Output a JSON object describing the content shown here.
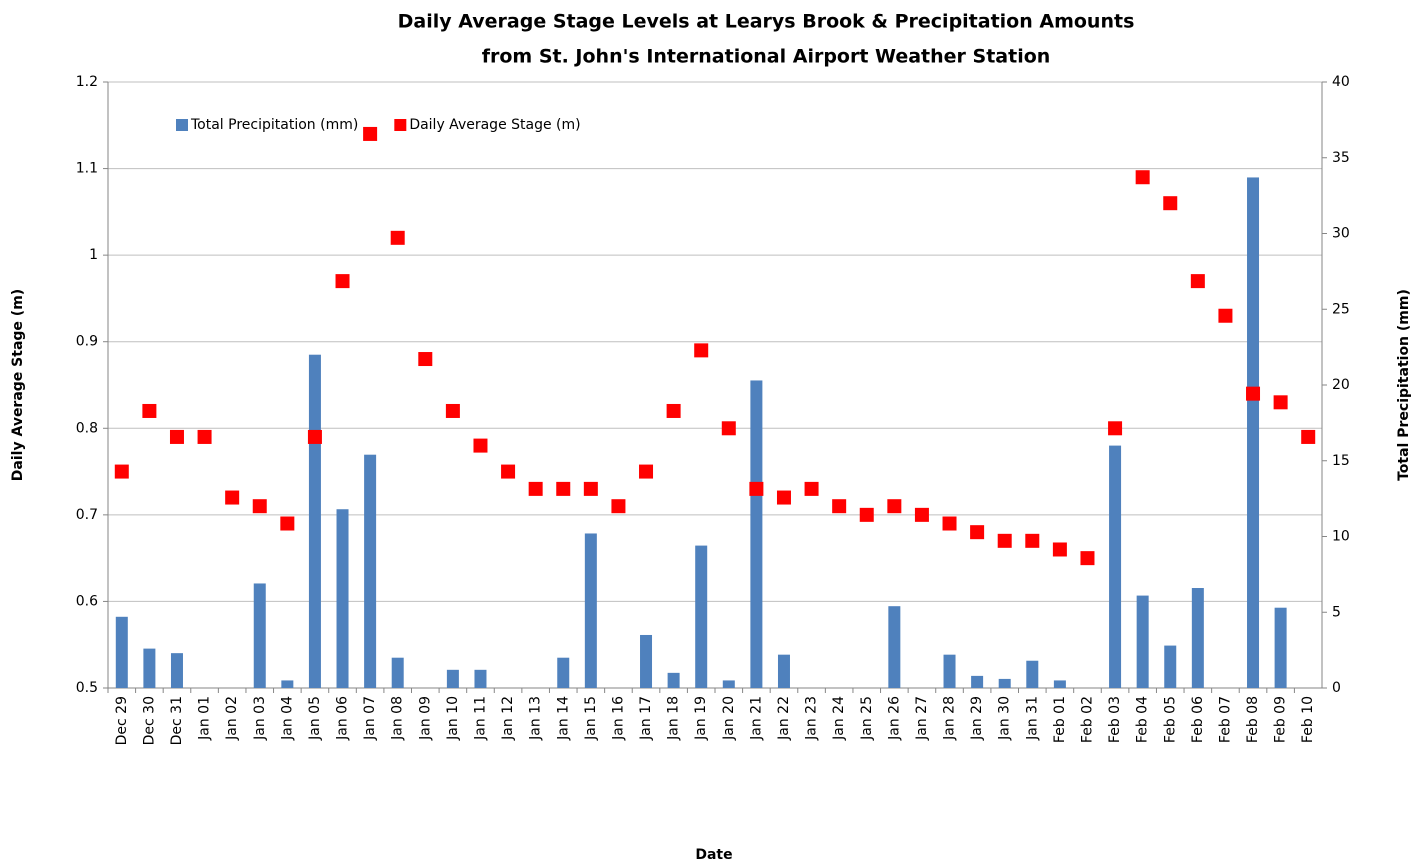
{
  "chart_data": {
    "type": "bar",
    "title": [
      "Daily Average Stage Levels at Learys Brook & Precipitation Amounts",
      "from St. John's International Airport Weather Station"
    ],
    "xlabel": "Date",
    "ylabel": "Daily Average Stage (m)",
    "y2label": "Total Precipitation (mm)",
    "categories": [
      "Dec 29",
      "Dec 30",
      "Dec 31",
      "Jan 01",
      "Jan 02",
      "Jan 03",
      "Jan 04",
      "Jan 05",
      "Jan 06",
      "Jan 07",
      "Jan 08",
      "Jan 09",
      "Jan 10",
      "Jan 11",
      "Jan 12",
      "Jan 13",
      "Jan 14",
      "Jan 15",
      "Jan 16",
      "Jan 17",
      "Jan 18",
      "Jan 19",
      "Jan 20",
      "Jan 21",
      "Jan 22",
      "Jan 23",
      "Jan 24",
      "Jan 25",
      "Jan 26",
      "Jan 27",
      "Jan 28",
      "Jan 29",
      "Jan 30",
      "Jan 31",
      "Feb 01",
      "Feb 02",
      "Feb 03",
      "Feb 04",
      "Feb 05",
      "Feb 06",
      "Feb 07",
      "Feb 08",
      "Feb 09",
      "Feb 10"
    ],
    "series": [
      {
        "name": "Total Precipitation (mm)",
        "type": "bar",
        "axis": "y2",
        "color": "#4f81bd",
        "values": [
          4.7,
          2.6,
          2.3,
          0,
          0,
          6.9,
          0.5,
          22.0,
          11.8,
          15.4,
          2.0,
          0,
          1.2,
          1.2,
          0,
          0,
          2.0,
          10.2,
          0,
          3.5,
          1.0,
          9.4,
          0.5,
          20.3,
          2.2,
          0,
          0,
          0,
          5.4,
          0,
          2.2,
          0.8,
          0.6,
          1.8,
          0.5,
          0,
          16.0,
          6.1,
          2.8,
          6.6,
          0,
          33.7,
          5.3,
          0
        ]
      },
      {
        "name": "Daily Average Stage (m)",
        "type": "scatter",
        "axis": "y",
        "color": "#ff0000",
        "values": [
          0.75,
          0.82,
          0.79,
          0.79,
          0.72,
          0.71,
          0.69,
          0.79,
          0.97,
          1.14,
          1.02,
          0.88,
          0.82,
          0.78,
          0.75,
          0.73,
          0.73,
          0.73,
          0.71,
          0.75,
          0.82,
          0.89,
          0.8,
          0.73,
          0.72,
          0.73,
          0.71,
          0.7,
          0.71,
          0.7,
          0.69,
          0.68,
          0.67,
          0.67,
          0.66,
          0.65,
          0.8,
          1.09,
          1.06,
          0.97,
          0.93,
          0.84,
          0.83,
          0.79
        ]
      }
    ],
    "ylim": [
      0.5,
      1.2
    ],
    "yticks": [
      0.5,
      0.6,
      0.7,
      0.8,
      0.9,
      1,
      1.1,
      1.2
    ],
    "y2lim": [
      0,
      40
    ],
    "y2ticks": [
      0,
      5,
      10,
      15,
      20,
      25,
      30,
      35,
      40
    ],
    "grid": true,
    "legend": "top-left"
  }
}
